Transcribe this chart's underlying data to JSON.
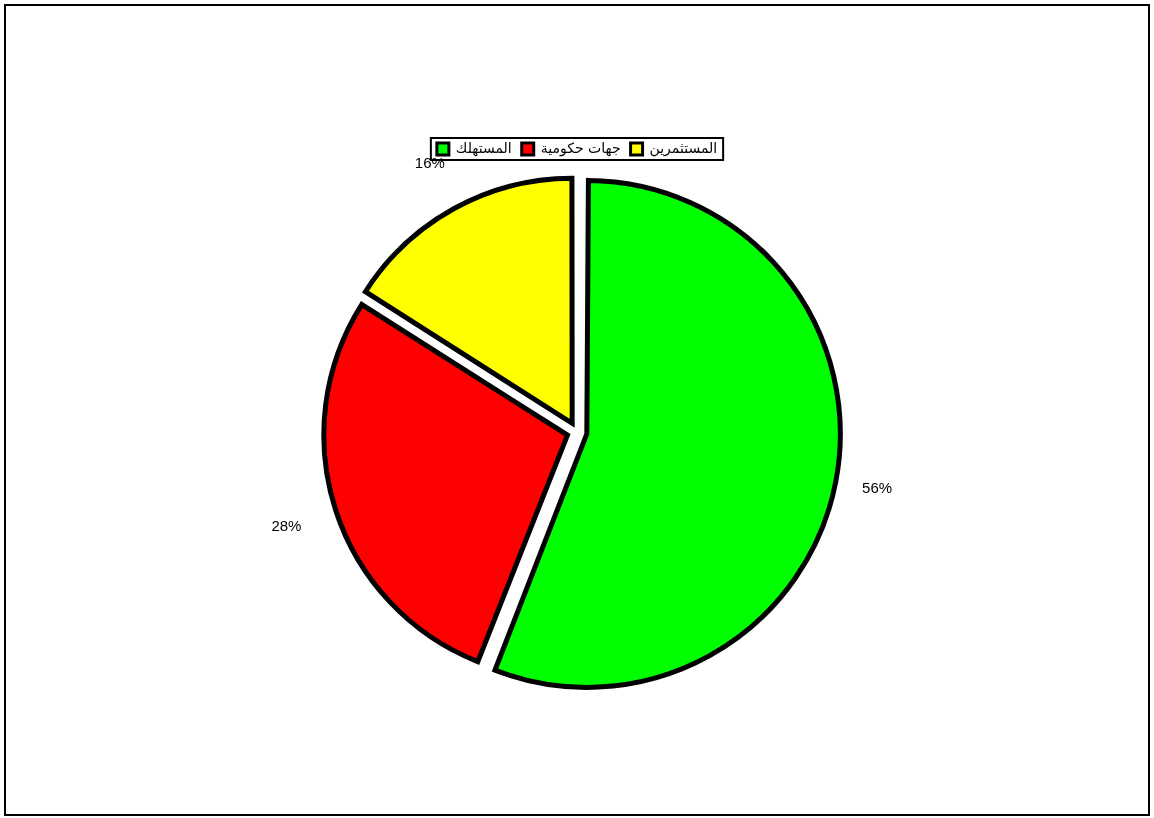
{
  "chart_data": {
    "type": "pie",
    "categories": [
      "المستهلك",
      "جهات حكومية",
      "المستثمرين"
    ],
    "values": [
      56,
      28,
      16
    ],
    "colors": [
      "#00ff00",
      "#ff0000",
      "#ffff00"
    ],
    "legend": "top",
    "value_labels": [
      "56%",
      "28%",
      "16%"
    ]
  }
}
